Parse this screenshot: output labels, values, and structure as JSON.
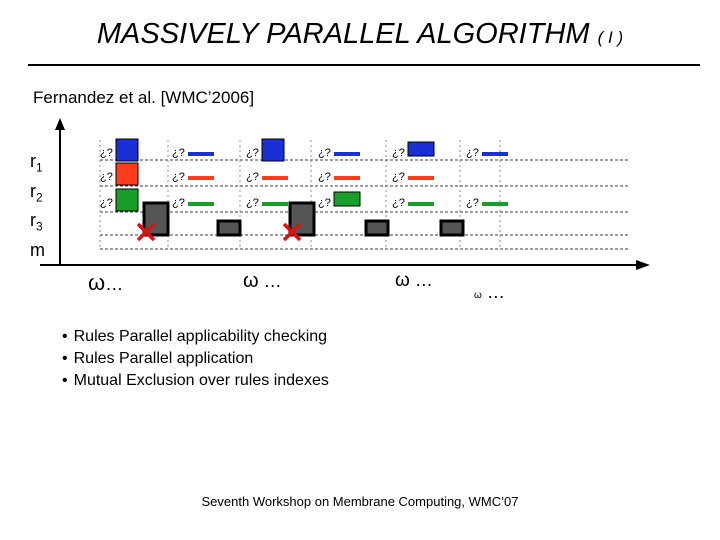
{
  "title": {
    "main": "MASSIVELY PARALLEL ALGORITHM",
    "sub": "( I )"
  },
  "reference": "Fernandez et al. [WMC’2006]",
  "rows": [
    {
      "label": "r",
      "sub": "1"
    },
    {
      "label": "r",
      "sub": "2"
    },
    {
      "label": "r",
      "sub": "3"
    },
    {
      "label": "m",
      "sub": ""
    }
  ],
  "check_mark": "¿?",
  "colors": {
    "r1": "#1a2fd6",
    "r2": "#ff3b1a",
    "r3": "#1a9e2a",
    "m": "#333333",
    "cross": "#e01010",
    "axis": "#000000"
  },
  "omegas": [
    {
      "symbol": "ω",
      "dots": "…"
    },
    {
      "symbol": "ω",
      "dots": " …"
    },
    {
      "symbol": "ω",
      "dots": " …"
    },
    {
      "symbol": "ω",
      "dots": " …"
    }
  ],
  "bullets": [
    "Rules Parallel applicability checking",
    "Rules Parallel  application",
    "Mutual Exclusion over rules indexes"
  ],
  "footer": "Seventh Workshop on Membrane Computing, WMC’07"
}
